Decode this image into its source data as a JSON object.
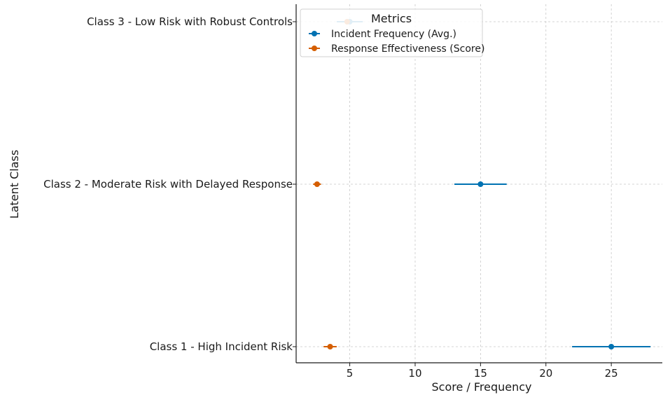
{
  "chart_data": {
    "type": "scatter",
    "title": "",
    "xlabel": "Score / Frequency",
    "ylabel": "Latent Class",
    "xlim": [
      0.9,
      28.9
    ],
    "xticks": [
      5,
      10,
      15,
      20,
      25
    ],
    "grid": true,
    "legend": {
      "title": "Metrics",
      "placement": "top-left"
    },
    "categories": [
      "Class 1 - High Incident Risk",
      "Class 2 - Moderate Risk with Delayed Response",
      "Class 3 - Low Risk with Robust Controls"
    ],
    "series": [
      {
        "name": "Incident Frequency (Avg.)",
        "color": "#0072b2",
        "points": [
          {
            "category": "Class 1 - High Incident Risk",
            "value": 25,
            "err_low": 22,
            "err_high": 28
          },
          {
            "category": "Class 2 - Moderate Risk with Delayed Response",
            "value": 15,
            "err_low": 13,
            "err_high": 17
          },
          {
            "category": "Class 3 - Low Risk with Robust Controls",
            "value": 5,
            "err_low": 4,
            "err_high": 6
          }
        ]
      },
      {
        "name": "Response Effectiveness (Score)",
        "color": "#d55e00",
        "points": [
          {
            "category": "Class 1 - High Incident Risk",
            "value": 3.5,
            "err_low": 3.0,
            "err_high": 4.0
          },
          {
            "category": "Class 2 - Moderate Risk with Delayed Response",
            "value": 2.5,
            "err_low": 2.2,
            "err_high": 2.8
          },
          {
            "category": "Class 3 - Low Risk with Robust Controls",
            "value": 4.8,
            "err_low": 4.6,
            "err_high": 5.0
          }
        ]
      }
    ]
  }
}
